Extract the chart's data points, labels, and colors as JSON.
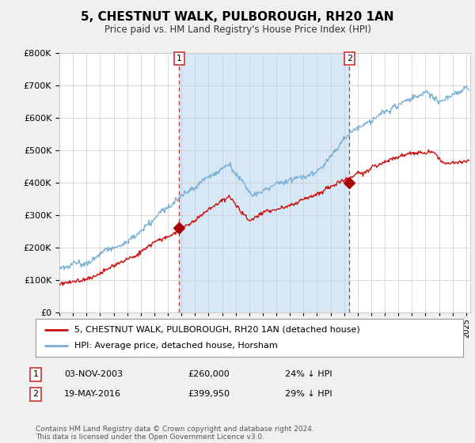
{
  "title": "5, CHESTNUT WALK, PULBOROUGH, RH20 1AN",
  "subtitle": "Price paid vs. HM Land Registry's House Price Index (HPI)",
  "ylim": [
    0,
    800000
  ],
  "xlim_start": 1995.0,
  "xlim_end": 2025.3,
  "hpi_color": "#7ab0d4",
  "hpi_fill_color": "#d6e8f5",
  "price_color": "#cc1111",
  "marker_color": "#aa0000",
  "vline_color": "#cc3333",
  "annotation_box_color": "#cc3333",
  "legend_label_red": "5, CHESTNUT WALK, PULBOROUGH, RH20 1AN (detached house)",
  "legend_label_blue": "HPI: Average price, detached house, Horsham",
  "annotation1_num": "1",
  "annotation1_date": "03-NOV-2003",
  "annotation1_price": "£260,000",
  "annotation1_hpi": "24% ↓ HPI",
  "annotation2_num": "2",
  "annotation2_date": "19-MAY-2016",
  "annotation2_price": "£399,950",
  "annotation2_hpi": "29% ↓ HPI",
  "footer": "Contains HM Land Registry data © Crown copyright and database right 2024.\nThis data is licensed under the Open Government Licence v3.0.",
  "sale1_x": 2003.84,
  "sale1_y": 260000,
  "sale2_x": 2016.38,
  "sale2_y": 399950,
  "bg_color": "#f0f0f0",
  "plot_bg_color": "#ffffff"
}
